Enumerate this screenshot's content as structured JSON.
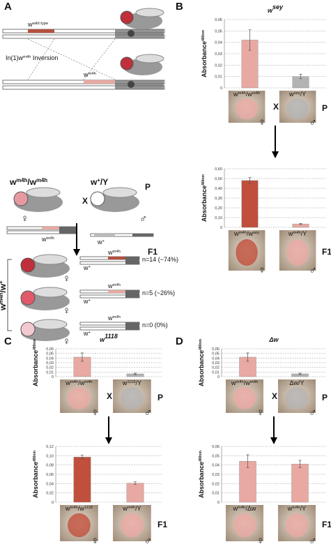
{
  "panel_labels": {
    "a": "A",
    "b": "B",
    "c": "C",
    "d": "D"
  },
  "panel_a": {
    "wild_type": [
      {
        "text": "w"
      },
      {
        "text": "wild type",
        "sup": true
      }
    ],
    "inversion": [
      {
        "text": "In(1)w"
      },
      {
        "text": "m4h",
        "sup": true
      },
      {
        "text": " Inversion"
      }
    ],
    "m4h": [
      {
        "text": "w"
      },
      {
        "text": "m4h",
        "sup": true
      }
    ],
    "mother": [
      {
        "text": "w"
      },
      {
        "text": "m4h",
        "sup": true
      },
      {
        "text": "/w"
      },
      {
        "text": "m4h",
        "sup": true
      }
    ],
    "father": [
      {
        "text": "w"
      },
      {
        "text": "+",
        "sup": true
      },
      {
        "text": "/Y"
      }
    ],
    "cross": "X",
    "p": "P",
    "f1": "F1",
    "female": "♀",
    "male": "♂",
    "mother_chrom": [
      {
        "text": "w"
      },
      {
        "text": "m4h",
        "sup": true
      }
    ],
    "father_chrom": [
      {
        "text": "w"
      },
      {
        "text": "+",
        "sup": true
      }
    ],
    "offspring": [
      {
        "text": "w"
      },
      {
        "text": "m4h",
        "sup": true
      },
      {
        "text": "/w"
      },
      {
        "text": "+",
        "sup": true
      }
    ],
    "rows": [
      {
        "upper": [
          {
            "text": "w"
          },
          {
            "text": "m4h",
            "sup": true
          }
        ],
        "lower": [
          {
            "text": "w"
          },
          {
            "text": "+",
            "sup": true
          }
        ],
        "count": "n=14 (~74%)"
      },
      {
        "upper": [
          {
            "text": "w"
          },
          {
            "text": "m4h",
            "sup": true
          }
        ],
        "lower": [
          {
            "text": "w"
          },
          {
            "text": "+",
            "sup": true
          }
        ],
        "count": "n=5 (~26%)"
      },
      {
        "upper": [
          {
            "text": "w"
          },
          {
            "text": "m4h",
            "sup": true
          }
        ],
        "lower": [
          {
            "text": "w"
          },
          {
            "text": "+",
            "sup": true
          }
        ],
        "count": "n=0 (0%)"
      }
    ]
  },
  "chart_data": [
    {
      "type": "bar",
      "title": "w",
      "title_sup": "sey",
      "y_label": "Absorbance",
      "y_label_sub": "480nm",
      "photo_labels": [
        [
          {
            "text": "w"
          },
          {
            "text": "m4h",
            "sup": true
          },
          {
            "text": "/w"
          },
          {
            "text": "m4h",
            "sup": true
          }
        ],
        [
          {
            "text": "w"
          },
          {
            "text": "sey",
            "sup": true
          },
          {
            "text": "/Y"
          }
        ]
      ],
      "values": [
        0.042,
        0.01
      ],
      "errors": [
        0.009,
        0.002
      ],
      "colors": [
        "#e8a9a2",
        "#b3b3b3"
      ],
      "ylim": [
        0,
        0.06
      ],
      "yticks": [
        0,
        {
          "value": 0.01,
          "label": "0,01"
        },
        {
          "value": 0.02,
          "label": "0,02"
        },
        {
          "value": 0.03,
          "label": "0,03"
        },
        {
          "value": 0.04,
          "label": "0,04"
        },
        {
          "value": 0.05,
          "label": "0,05"
        },
        {
          "value": 0.06,
          "label": "0,06"
        }
      ],
      "grid": true,
      "symbols": [
        "♀",
        "♂"
      ],
      "cross": "X",
      "generation": "P"
    },
    {
      "type": "bar",
      "y_label": "Absorbance",
      "y_label_sub": "480nm",
      "photo_labels": [
        [
          {
            "text": "w"
          },
          {
            "text": "m4h",
            "sup": true
          },
          {
            "text": "/w"
          },
          {
            "text": "sey",
            "sup": true
          }
        ],
        [
          {
            "text": "w"
          },
          {
            "text": "m4h",
            "sup": true
          },
          {
            "text": "/Y"
          }
        ]
      ],
      "values": [
        0.48,
        0.035
      ],
      "errors": [
        0.03,
        0.005
      ],
      "colors": [
        "#c0503d",
        "#e8a9a2"
      ],
      "ylim": [
        0,
        0.6
      ],
      "yticks": [
        0,
        {
          "value": 0.1,
          "label": "0,10"
        },
        {
          "value": 0.2,
          "label": "0,20"
        },
        {
          "value": 0.3,
          "label": "0,30"
        },
        {
          "value": 0.4,
          "label": "0,40"
        },
        {
          "value": 0.5,
          "label": "0,50"
        },
        {
          "value": 0.6,
          "label": "0,60"
        }
      ],
      "grid": true,
      "symbols": [
        "♀",
        "♂"
      ],
      "generation": "F1"
    },
    {
      "type": "bar",
      "title": "w",
      "title_sup": "1118",
      "y_label": "Absorbance",
      "y_label_sub": "480nm",
      "photo_labels": [
        [
          {
            "text": "w"
          },
          {
            "text": "m4h",
            "sup": true
          },
          {
            "text": "/w"
          },
          {
            "text": "m4h",
            "sup": true
          }
        ],
        [
          {
            "text": "w"
          },
          {
            "text": "1118",
            "sup": true
          },
          {
            "text": "/Y"
          }
        ]
      ],
      "values": [
        0.042,
        0.006
      ],
      "errors": [
        0.009,
        0.0015
      ],
      "colors": [
        "#e8a9a2",
        "#b3b3b3"
      ],
      "ylim": [
        0,
        0.06
      ],
      "yticks": [
        0,
        {
          "value": 0.01,
          "label": "0,01"
        },
        {
          "value": 0.02,
          "label": "0,02"
        },
        {
          "value": 0.03,
          "label": "0,03"
        },
        {
          "value": 0.04,
          "label": "0,04"
        },
        {
          "value": 0.05,
          "label": "0,05"
        },
        {
          "value": 0.06,
          "label": "0,06"
        }
      ],
      "grid": true,
      "symbols": [
        "♀",
        "♂"
      ],
      "cross": "X",
      "generation": "P"
    },
    {
      "type": "bar",
      "y_label": "Absorbance",
      "y_label_sub": "480nm",
      "photo_labels": [
        [
          {
            "text": "w"
          },
          {
            "text": "m4h",
            "sup": true
          },
          {
            "text": "/w"
          },
          {
            "text": "1118",
            "sup": true
          }
        ],
        [
          {
            "text": "w"
          },
          {
            "text": "m4h",
            "sup": true
          },
          {
            "text": "/Y"
          }
        ]
      ],
      "values": [
        0.097,
        0.041
      ],
      "errors": [
        0.004,
        0.003
      ],
      "colors": [
        "#c0503d",
        "#e8a9a2"
      ],
      "ylim": [
        0,
        0.12
      ],
      "yticks": [
        0,
        {
          "value": 0.02,
          "label": "0,02"
        },
        {
          "value": 0.04,
          "label": "0,04"
        },
        {
          "value": 0.06,
          "label": "0,06"
        },
        {
          "value": 0.08,
          "label": "0,08"
        },
        {
          "value": 0.1,
          "label": "0,10"
        },
        {
          "value": 0.12,
          "label": "0,12"
        }
      ],
      "grid": true,
      "symbols": [
        "♀",
        "♂"
      ],
      "generation": "F1"
    },
    {
      "type": "bar",
      "title": "Δw",
      "y_label": "Absorbance",
      "y_label_sub": "480nm",
      "photo_labels": [
        [
          {
            "text": "w"
          },
          {
            "text": "m4h",
            "sup": true
          },
          {
            "text": "/w"
          },
          {
            "text": "m4h",
            "sup": true
          }
        ],
        [
          {
            "text": "Δw/Y"
          }
        ]
      ],
      "values": [
        0.042,
        0.006
      ],
      "errors": [
        0.009,
        0.0015
      ],
      "colors": [
        "#e8a9a2",
        "#b3b3b3"
      ],
      "ylim": [
        0,
        0.06
      ],
      "yticks": [
        0,
        {
          "value": 0.01,
          "label": "0,01"
        },
        {
          "value": 0.02,
          "label": "0,02"
        },
        {
          "value": 0.03,
          "label": "0,03"
        },
        {
          "value": 0.04,
          "label": "0,04"
        },
        {
          "value": 0.05,
          "label": "0,05"
        },
        {
          "value": 0.06,
          "label": "0,06"
        }
      ],
      "grid": true,
      "symbols": [
        "♀",
        "♂"
      ],
      "cross": "X",
      "generation": "P"
    },
    {
      "type": "bar",
      "y_label": "Absorbance",
      "y_label_sub": "480nm",
      "photo_labels": [
        [
          {
            "text": "w"
          },
          {
            "text": "m4h",
            "sup": true
          },
          {
            "text": "/Δw"
          }
        ],
        [
          {
            "text": "w"
          },
          {
            "text": "m4h",
            "sup": true
          },
          {
            "text": "/Y"
          }
        ]
      ],
      "values": [
        0.044,
        0.041
      ],
      "errors": [
        0.007,
        0.004
      ],
      "colors": [
        "#e8a9a2",
        "#e8a9a2"
      ],
      "ylim": [
        0,
        0.06
      ],
      "yticks": [
        0,
        {
          "value": 0.01,
          "label": "0,01"
        },
        {
          "value": 0.02,
          "label": "0,02"
        },
        {
          "value": 0.03,
          "label": "0,03"
        },
        {
          "value": 0.04,
          "label": "0,04"
        },
        {
          "value": 0.05,
          "label": "0,05"
        },
        {
          "value": 0.06,
          "label": "0,06"
        }
      ],
      "grid": true,
      "symbols": [
        "♀",
        "♂"
      ],
      "generation": "F1"
    }
  ]
}
